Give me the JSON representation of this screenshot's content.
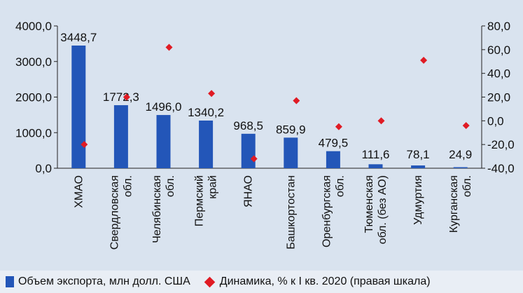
{
  "chart_data": {
    "type": "bar",
    "categories": [
      "ХМАО",
      "Свердловская обл.",
      "Челябинская обл.",
      "Пермский край",
      "ЯНАО",
      "Башкортостан",
      "Оренбургская обл.",
      "Тюменская обл. (без АО)",
      "Удмуртия",
      "Курганская обл."
    ],
    "series": [
      {
        "name": "Объем экспорта, млн долл. США",
        "axis": "left",
        "values": [
          3448.7,
          1772.3,
          1496.0,
          1340.2,
          968.5,
          859.9,
          479.5,
          111.6,
          78.1,
          24.9
        ],
        "labels": [
          "3448,7",
          "1772,3",
          "1496,0",
          "1340,2",
          "968,5",
          "859,9",
          "479,5",
          "111,6",
          "78,1",
          "24,9"
        ],
        "color": "#2356b8"
      },
      {
        "name": "Динамика, % к I кв. 2020 (правая шкала)",
        "axis": "right",
        "marker": "diamond",
        "values": [
          -20,
          20,
          62,
          23,
          -32,
          17,
          -5,
          0,
          51,
          -4
        ],
        "color": "#e01b24"
      }
    ],
    "y_left": {
      "min": 0,
      "max": 4000,
      "ticks": [
        "0,0",
        "1000,0",
        "2000,0",
        "3000,0",
        "4000,0"
      ]
    },
    "y_right": {
      "min": -40,
      "max": 80,
      "ticks": [
        "-40,0",
        "-20,0",
        "0,0",
        "20,0",
        "40,0",
        "60,0",
        "80,0"
      ]
    },
    "grid": false,
    "legend_position": "bottom"
  },
  "legend": {
    "bar_label": "Объем экспорта, млн долл. США",
    "marker_label": "Динамика, % к I кв. 2020 (правая шкала)"
  }
}
